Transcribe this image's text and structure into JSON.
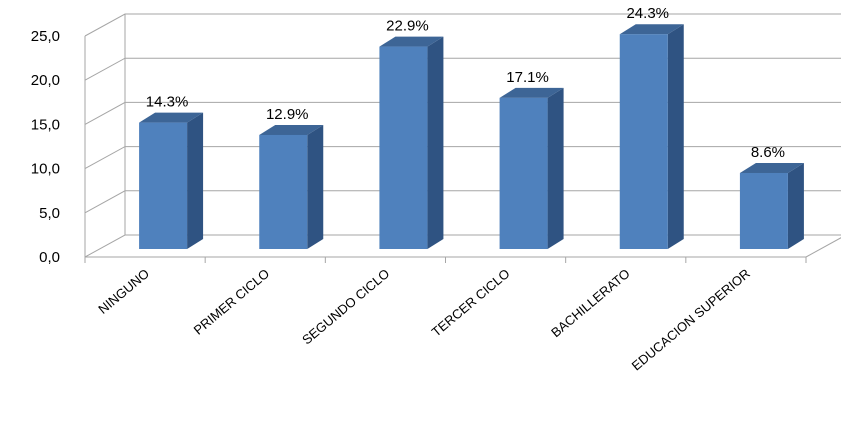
{
  "chart_data": {
    "type": "bar",
    "categories": [
      "NINGUNO",
      "PRIMER CICLO",
      "SEGUNDO CICLO",
      "TERCER CICLO",
      "BACHILLERATO",
      "EDUCACION SUPERIOR"
    ],
    "values": [
      14.3,
      12.9,
      22.9,
      17.1,
      24.3,
      8.6
    ],
    "data_labels": [
      "14.3%",
      "12.9%",
      "22.9%",
      "17.1%",
      "24.3%",
      "8.6%"
    ],
    "yticks": [
      "0,0",
      "5,0",
      "10,0",
      "15,0",
      "20,0",
      "25,0"
    ],
    "ylim": [
      0,
      25
    ],
    "grid": true,
    "legend": "none",
    "style": "3d-column",
    "colors": {
      "bar_front": "#4f81bd",
      "bar_side": "#2f5382",
      "bar_top": "#3d6596",
      "grid": "#a6a6a6"
    }
  }
}
